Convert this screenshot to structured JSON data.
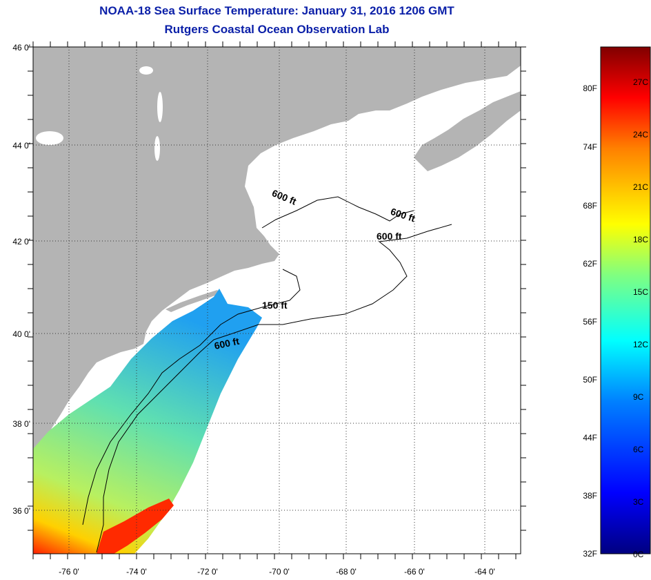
{
  "header": {
    "title": "NOAA-18 Sea Surface Temperature:  January 31, 2016 1206 GMT",
    "subtitle": "Rutgers Coastal Ocean Observation Lab"
  },
  "map": {
    "lat_labels": [
      "46 0'",
      "44 0'",
      "42 0'",
      "40 0'",
      "38 0'",
      "36 0'"
    ],
    "lon_labels": [
      "-76 0'",
      "-74 0'",
      "-72 0'",
      "-70 0'",
      "-68 0'",
      "-66 0'",
      "-64 0'"
    ],
    "lat_range": [
      35.0,
      46.0
    ],
    "lon_range": [
      -77.0,
      -63.5
    ],
    "depth_labels": [
      "600 ft",
      "600 ft",
      "600 ft",
      "150 ft",
      "600 ft"
    ],
    "land_color": "#b4b4b4",
    "grid": "dotted"
  },
  "colorbar": {
    "fahrenheit_labels": [
      "80F",
      "74F",
      "68F",
      "62F",
      "56F",
      "50F",
      "44F",
      "38F",
      "32F"
    ],
    "celsius_labels": [
      "27C",
      "24C",
      "21C",
      "18C",
      "15C",
      "12C",
      "9C",
      "6C",
      "3C",
      "0C"
    ],
    "range_c": [
      0,
      29
    ]
  }
}
